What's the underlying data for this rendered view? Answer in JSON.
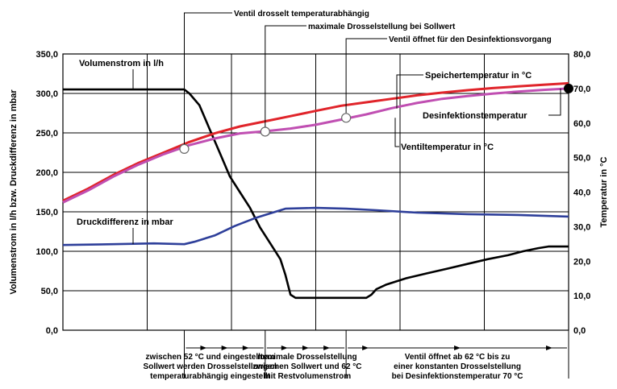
{
  "chart_data": {
    "type": "line",
    "x_range": [
      0,
      100
    ],
    "left_axis": {
      "label": "Volumenstrom in l/h bzw. Druckdifferenz in mbar",
      "range": [
        0,
        350
      ],
      "ticks": [
        "0,0",
        "50,0",
        "100,0",
        "150,0",
        "200,0",
        "250,0",
        "300,0",
        "350,0"
      ]
    },
    "right_axis": {
      "label": "Temperatur in °C",
      "range": [
        0,
        80
      ],
      "ticks": [
        "0,0",
        "10,0",
        "20,0",
        "30,0",
        "40,0",
        "50,0",
        "60,0",
        "70,0",
        "80,0"
      ]
    },
    "grid": true,
    "series": [
      {
        "name": "Volumenstrom in l/h",
        "axis": "left",
        "color": "#000000",
        "points": [
          [
            0,
            305
          ],
          [
            24,
            305
          ],
          [
            25,
            300
          ],
          [
            27,
            285
          ],
          [
            29,
            255
          ],
          [
            31,
            225
          ],
          [
            33,
            195
          ],
          [
            35,
            175
          ],
          [
            37,
            155
          ],
          [
            39,
            130
          ],
          [
            41,
            110
          ],
          [
            43,
            90
          ],
          [
            44,
            70
          ],
          [
            45,
            45
          ],
          [
            46,
            41
          ],
          [
            60,
            41
          ],
          [
            61,
            45
          ],
          [
            62,
            52
          ],
          [
            64,
            58
          ],
          [
            66,
            62
          ],
          [
            68,
            66
          ],
          [
            72,
            72
          ],
          [
            76,
            78
          ],
          [
            80,
            84
          ],
          [
            84,
            90
          ],
          [
            88,
            95
          ],
          [
            91,
            100
          ],
          [
            94,
            104
          ],
          [
            96,
            106
          ],
          [
            100,
            106
          ]
        ]
      },
      {
        "name": "Druckdifferenz in mbar",
        "axis": "left",
        "color": "#2e3f9a",
        "points": [
          [
            0,
            108
          ],
          [
            10,
            109
          ],
          [
            18,
            110
          ],
          [
            24,
            109
          ],
          [
            26,
            112
          ],
          [
            30,
            120
          ],
          [
            34,
            132
          ],
          [
            38,
            142
          ],
          [
            42,
            150
          ],
          [
            44,
            154
          ],
          [
            50,
            155
          ],
          [
            56,
            154
          ],
          [
            62,
            152
          ],
          [
            70,
            149
          ],
          [
            80,
            147
          ],
          [
            90,
            146
          ],
          [
            100,
            144
          ]
        ]
      },
      {
        "name": "Speichertemperatur in °C",
        "axis": "right",
        "color": "#e0242a",
        "points": [
          [
            0,
            37.5
          ],
          [
            5,
            41
          ],
          [
            10,
            45
          ],
          [
            15,
            48.5
          ],
          [
            20,
            51.5
          ],
          [
            25,
            54.5
          ],
          [
            30,
            57
          ],
          [
            35,
            59
          ],
          [
            40,
            60.5
          ],
          [
            45,
            62
          ],
          [
            50,
            63.5
          ],
          [
            55,
            65
          ],
          [
            60,
            66
          ],
          [
            65,
            67
          ],
          [
            70,
            68
          ],
          [
            75,
            68.8
          ],
          [
            80,
            69.5
          ],
          [
            85,
            70.1
          ],
          [
            90,
            70.6
          ],
          [
            95,
            71.1
          ],
          [
            100,
            71.5
          ]
        ]
      },
      {
        "name": "Ventiltemperatur in °C",
        "axis": "right",
        "color": "#c04fb2",
        "points": [
          [
            0,
            37
          ],
          [
            5,
            40.5
          ],
          [
            10,
            44.5
          ],
          [
            15,
            48
          ],
          [
            20,
            51
          ],
          [
            25,
            53.6
          ],
          [
            30,
            55.5
          ],
          [
            35,
            57
          ],
          [
            40,
            57.6
          ],
          [
            45,
            58.4
          ],
          [
            50,
            59.5
          ],
          [
            55,
            61
          ],
          [
            60,
            62.5
          ],
          [
            65,
            64.3
          ],
          [
            70,
            65.8
          ],
          [
            75,
            67
          ],
          [
            80,
            67.8
          ],
          [
            85,
            68.5
          ],
          [
            90,
            69.1
          ],
          [
            95,
            69.6
          ],
          [
            100,
            70
          ]
        ]
      }
    ],
    "markers": [
      {
        "x": 24,
        "y_temp": 52.5,
        "type": "open-circle"
      },
      {
        "x": 40,
        "y_temp": 57.5,
        "type": "open-circle"
      },
      {
        "x": 56,
        "y_temp": 61.5,
        "type": "open-circle"
      },
      {
        "x": 100,
        "y_temp": 70,
        "type": "filled-circle"
      }
    ],
    "inline_labels": {
      "volumenstrom": "Volumenstrom in l/h",
      "druckdifferenz": "Druckdifferenz in mbar",
      "speicher": "Speichertemperatur in °C",
      "desinfektion": "Desinfektionstemperatur",
      "ventil": "Ventiltemperatur in °C"
    },
    "top_annotations": [
      "Ventil drosselt temperaturabhängig",
      "maximale Drosselstellung bei Sollwert",
      "Ventil öffnet für den Desinfektionsvorgang"
    ],
    "bottom_annotations": [
      [
        "zwischen 52 °C und eingestelltem",
        "Sollwert werden Drosselstellungen",
        "temperaturabhängig eingestellt"
      ],
      [
        "maximale Drosselstellung",
        "zwischen Sollwert und 62 °C",
        "mit Restvolumenstrom"
      ],
      [
        "Ventil öffnet ab 62 °C bis zu",
        "einer konstanten Drosselstellung",
        "bei Desinfektionstemperatur 70 °C"
      ]
    ]
  }
}
